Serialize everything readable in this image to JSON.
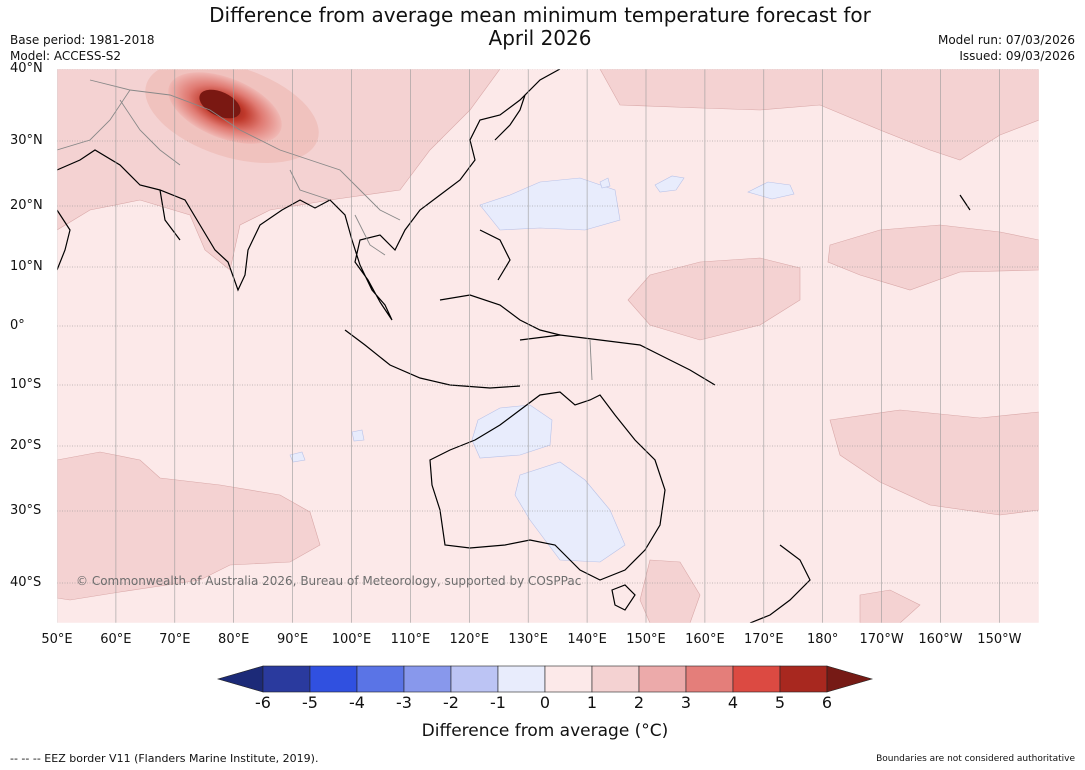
{
  "title_line1": "Difference from average mean minimum temperature forecast for",
  "title_line2": "April 2026",
  "meta_left": {
    "base_period": "Base period: 1981-2018",
    "model": "Model: ACCESS-S2"
  },
  "meta_right": {
    "model_run": "Model run: 07/03/2026",
    "issued": "Issued: 09/03/2026"
  },
  "lat_labels": [
    "40°N",
    "30°N",
    "20°N",
    "10°N",
    "0°",
    "10°S",
    "20°S",
    "30°S",
    "40°S"
  ],
  "lon_labels": [
    "50°E",
    "60°E",
    "70°E",
    "80°E",
    "90°E",
    "100°E",
    "110°E",
    "120°E",
    "130°E",
    "140°E",
    "150°E",
    "160°E",
    "170°E",
    "180°",
    "170°W",
    "160°W",
    "150°W"
  ],
  "copyright": "© Commonwealth of Australia 2026, Bureau of Meteorology, supported by COSPPac",
  "colorbar": {
    "ticks": [
      "-6",
      "-5",
      "-4",
      "-3",
      "-2",
      "-1",
      "0",
      "1",
      "2",
      "3",
      "4",
      "5",
      "6"
    ],
    "colors": [
      "#2a3a9e",
      "#3050e0",
      "#5a74e6",
      "#8898ec",
      "#bcc4f4",
      "#e8ecfc",
      "#fce9e9",
      "#f4d2d2",
      "#ecaaaa",
      "#e47e7a",
      "#dc4a42",
      "#a8281f"
    ],
    "low_extend_color": "#1c2a78",
    "high_extend_color": "#761a15",
    "label": "Difference from average (°C)"
  },
  "footer_left": "-- -- -- EEZ border V11 (Flanders Marine Institute, 2019).",
  "footer_right": "Boundaries are not considered authoritative"
}
